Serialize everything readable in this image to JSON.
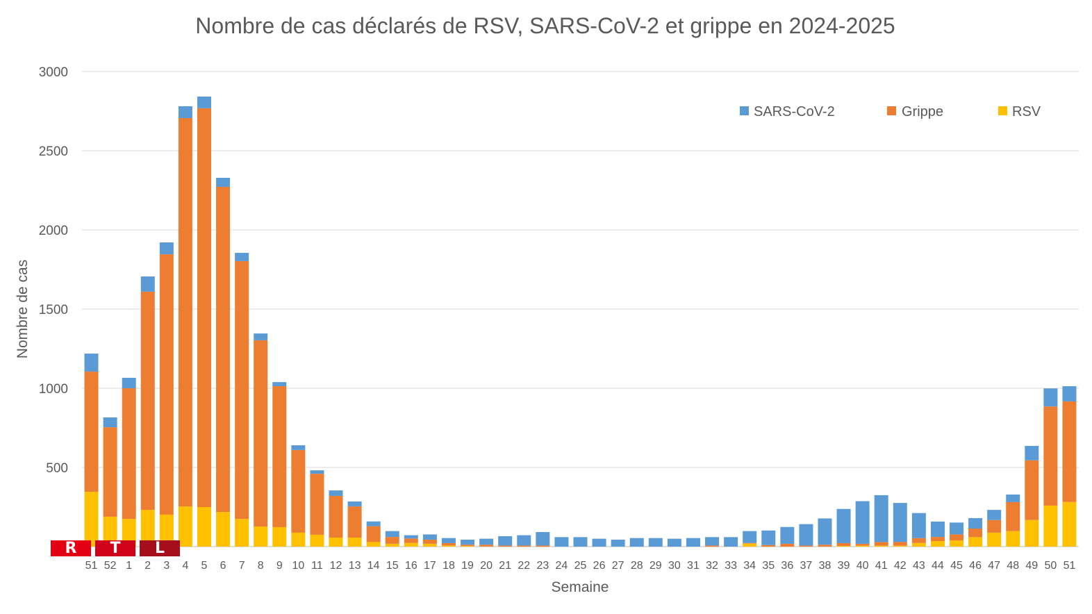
{
  "chart_data": {
    "type": "bar",
    "stacked": true,
    "title": "Nombre de cas déclarés de RSV, SARS-CoV-2 et grippe en 2024-2025",
    "xlabel": "Semaine",
    "ylabel": "Nombre de cas",
    "ylim": [
      0,
      3000
    ],
    "yticks": [
      0,
      500,
      1000,
      1500,
      2000,
      2500,
      3000
    ],
    "ytick_labels": [
      "",
      "500",
      "1000",
      "1500",
      "2000",
      "2500",
      "3000"
    ],
    "grid": true,
    "legend_position": "top-right",
    "categories": [
      "51",
      "52",
      "1",
      "2",
      "3",
      "4",
      "5",
      "6",
      "7",
      "8",
      "9",
      "10",
      "11",
      "12",
      "13",
      "14",
      "15",
      "16",
      "17",
      "18",
      "19",
      "20",
      "21",
      "22",
      "23",
      "24",
      "25",
      "26",
      "27",
      "28",
      "29",
      "30",
      "31",
      "32",
      "33",
      "34",
      "35",
      "36",
      "37",
      "38",
      "39",
      "40",
      "41",
      "42",
      "43",
      "44",
      "45",
      "46",
      "47",
      "48",
      "49",
      "50",
      "51"
    ],
    "series": [
      {
        "name": "RSV",
        "color": "#ffc000",
        "values": [
          346,
          189,
          175,
          232,
          202,
          254,
          250,
          219,
          175,
          127,
          123,
          88,
          75,
          57,
          57,
          29,
          18,
          23,
          18,
          7,
          4,
          1,
          0,
          0,
          0,
          0,
          0,
          0,
          0,
          0,
          0,
          0,
          0,
          0,
          0,
          19,
          0,
          0,
          0,
          0,
          4,
          6,
          6,
          6,
          23,
          35,
          39,
          60,
          88,
          98,
          168,
          259,
          282
        ]
      },
      {
        "name": "Grippe",
        "color": "#ed7d31",
        "values": [
          759,
          565,
          825,
          1378,
          1644,
          2452,
          2518,
          2053,
          1628,
          1176,
          890,
          522,
          385,
          263,
          197,
          100,
          43,
          28,
          26,
          15,
          8,
          11,
          7,
          7,
          7,
          0,
          0,
          0,
          0,
          0,
          0,
          0,
          0,
          7,
          0,
          4,
          10,
          18,
          7,
          12,
          18,
          12,
          23,
          23,
          31,
          26,
          38,
          54,
          80,
          183,
          377,
          626,
          635
        ]
      },
      {
        "name": "SARS-CoV-2",
        "color": "#5b9bd5",
        "values": [
          114,
          62,
          66,
          96,
          75,
          75,
          74,
          57,
          52,
          43,
          26,
          30,
          22,
          35,
          31,
          30,
          37,
          21,
          33,
          32,
          32,
          38,
          59,
          65,
          85,
          60,
          60,
          50,
          44,
          54,
          54,
          50,
          54,
          53,
          60,
          75,
          92,
          106,
          135,
          166,
          216,
          269,
          296,
          247,
          158,
          97,
          75,
          66,
          64,
          48,
          91,
          114,
          96
        ]
      }
    ],
    "legend_order": [
      "SARS-CoV-2",
      "Grippe",
      "RSV"
    ]
  },
  "logo": {
    "letters": [
      "R",
      "T",
      "L"
    ],
    "colors": [
      "#e40014",
      "#d0021b",
      "#a50e1a"
    ]
  }
}
